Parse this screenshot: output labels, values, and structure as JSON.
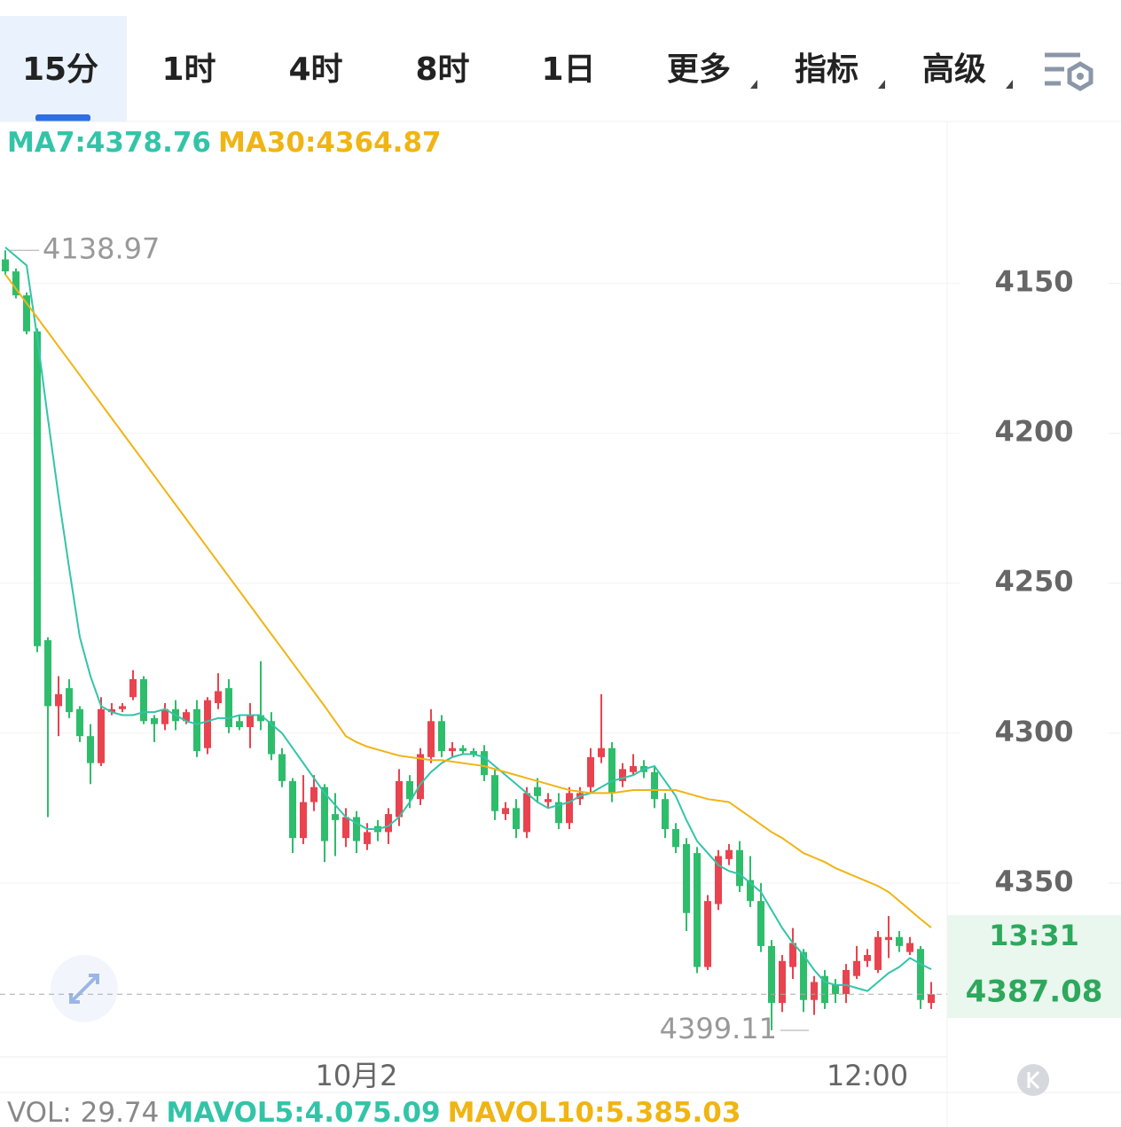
{
  "tabs": [
    "15分",
    "1时",
    "4时",
    "8时",
    "1日",
    "更多",
    "指标",
    "高级"
  ],
  "active_tab": 0,
  "chart_data": {
    "type": "candlestick",
    "legend": [
      "MA7:4378.76",
      "MA30:4364.87"
    ],
    "categories": [
      null,
      null,
      null,
      null,
      null,
      null,
      null,
      null,
      null,
      null,
      null,
      null,
      null,
      null,
      null,
      null,
      null,
      null,
      null,
      null,
      null,
      null,
      null,
      null,
      null,
      null,
      null,
      null,
      null,
      null,
      null,
      null,
      null,
      "10月2",
      null,
      null,
      null,
      null,
      null,
      null,
      null,
      null,
      null,
      null,
      null,
      null,
      null,
      null,
      null,
      null,
      null,
      null,
      null,
      null,
      null,
      null,
      null,
      null,
      null,
      null,
      null,
      null,
      null,
      null,
      null,
      null,
      null,
      null,
      null,
      null,
      null,
      null,
      null,
      null,
      null,
      null,
      null,
      null,
      null,
      null,
      null,
      "12:00",
      null,
      null,
      null,
      null,
      null,
      null
    ],
    "ohlc": [
      [
        4142,
        4147,
        4138.97,
        4146
      ],
      [
        4146,
        4155,
        4145,
        4154
      ],
      [
        4154,
        4167,
        4153,
        4166
      ],
      [
        4166,
        4273,
        4165,
        4271
      ],
      [
        4269,
        4328,
        4268,
        4291
      ],
      [
        4291,
        4301,
        4281,
        4287
      ],
      [
        4285,
        4295,
        4282,
        4293
      ],
      [
        4292,
        4303,
        4291,
        4301
      ],
      [
        4301,
        4317,
        4297,
        4310
      ],
      [
        4310,
        4311,
        4288,
        4292
      ],
      [
        4293,
        4294,
        4290,
        4292
      ],
      [
        4292,
        4293,
        4290,
        4291
      ],
      [
        4288,
        4289,
        4279,
        4282
      ],
      [
        4282,
        4297,
        4281,
        4296
      ],
      [
        4295,
        4303,
        4294,
        4297
      ],
      [
        4297,
        4299,
        4290,
        4292
      ],
      [
        4292,
        4299,
        4289,
        4296
      ],
      [
        4296,
        4297,
        4292,
        4293
      ],
      [
        4292,
        4308,
        4289,
        4306
      ],
      [
        4305,
        4307,
        4288,
        4289
      ],
      [
        4290,
        4292,
        4280,
        4286
      ],
      [
        4285,
        4300,
        4282,
        4298
      ],
      [
        4296,
        4299,
        4294,
        4298
      ],
      [
        4298,
        4305,
        4290,
        4294
      ],
      [
        4294,
        4299,
        4276,
        4296
      ],
      [
        4296,
        4309,
        4293,
        4307
      ],
      [
        4307,
        4318,
        4305,
        4316
      ],
      [
        4316,
        4340,
        4315,
        4335
      ],
      [
        4335,
        4337,
        4314,
        4323
      ],
      [
        4323,
        4326,
        4314,
        4318
      ],
      [
        4318,
        4343,
        4317,
        4336
      ],
      [
        4327,
        4341,
        4320,
        4329
      ],
      [
        4335,
        4338,
        4325,
        4328
      ],
      [
        4328,
        4340,
        4326,
        4336
      ],
      [
        4337,
        4339,
        4330,
        4333
      ],
      [
        4331,
        4336,
        4329,
        4333
      ],
      [
        4333,
        4337,
        4325,
        4327
      ],
      [
        4328,
        4331,
        4312,
        4316
      ],
      [
        4316,
        4325,
        4314,
        4322
      ],
      [
        4322,
        4324,
        4305,
        4307
      ],
      [
        4308,
        4310,
        4292,
        4296
      ],
      [
        4296,
        4308,
        4294,
        4306
      ],
      [
        4306,
        4308,
        4303,
        4305
      ],
      [
        4305,
        4307,
        4304,
        4306
      ],
      [
        4306,
        4308,
        4305,
        4307
      ],
      [
        4306,
        4316,
        4304,
        4314
      ],
      [
        4314,
        4329,
        4312,
        4326
      ],
      [
        4327,
        4329,
        4323,
        4325
      ],
      [
        4325,
        4335,
        4322,
        4332
      ],
      [
        4333,
        4335,
        4318,
        4320
      ],
      [
        4318,
        4323,
        4315,
        4321
      ],
      [
        4323,
        4325,
        4320,
        4322
      ],
      [
        4323,
        4332,
        4320,
        4330
      ],
      [
        4330,
        4332,
        4318,
        4320
      ],
      [
        4322,
        4324,
        4318,
        4320
      ],
      [
        4318,
        4320,
        4305,
        4308
      ],
      [
        4308,
        4310,
        4287,
        4305
      ],
      [
        4305,
        4323,
        4303,
        4320
      ],
      [
        4316,
        4318,
        4310,
        4312
      ],
      [
        4313,
        4314,
        4307,
        4311
      ],
      [
        4311,
        4315,
        4309,
        4313
      ],
      [
        4313,
        4325,
        4311,
        4322
      ],
      [
        4322,
        4335,
        4320,
        4332
      ],
      [
        4332,
        4340,
        4330,
        4338
      ],
      [
        4337,
        4366,
        4335,
        4360
      ],
      [
        4340,
        4380,
        4338,
        4378
      ],
      [
        4378,
        4379,
        4354,
        4356
      ],
      [
        4357,
        4359,
        4339,
        4341
      ],
      [
        4342,
        4344,
        4337,
        4339
      ],
      [
        4339,
        4353,
        4336,
        4351
      ],
      [
        4349,
        4358,
        4341,
        4356
      ],
      [
        4356,
        4373,
        4350,
        4371
      ],
      [
        4371,
        4399.11,
        4369,
        4390
      ],
      [
        4390,
        4393,
        4374,
        4376
      ],
      [
        4378,
        4382,
        4365,
        4370
      ],
      [
        4373,
        4393,
        4372,
        4389
      ],
      [
        4389,
        4394,
        4381,
        4383
      ],
      [
        4381,
        4392,
        4379,
        4390
      ],
      [
        4384,
        4390,
        4382,
        4387
      ],
      [
        4387,
        4390,
        4377,
        4379
      ],
      [
        4381,
        4382,
        4371,
        4376
      ],
      [
        4376,
        4378,
        4372,
        4374
      ],
      [
        4379,
        4380,
        4366,
        4368
      ],
      [
        4369,
        4375,
        4361,
        4368
      ],
      [
        4368,
        4373,
        4366,
        4371
      ],
      [
        4373,
        4374,
        4368,
        4370
      ],
      [
        4372,
        4392,
        4371,
        4389
      ],
      [
        4390,
        4392,
        4383,
        4387.08
      ]
    ],
    "up_color": "#2ebd6b",
    "down_color": "#e9434f",
    "series": [
      {
        "name": "MA7",
        "color": "#33c4a8",
        "values": [
          4138,
          4141,
          4144,
          4168,
          4195,
          4221,
          4245,
          4268,
          4281,
          4291,
          4293,
          4294,
          4294,
          4293,
          4293,
          4292,
          4294,
          4296,
          4297,
          4296,
          4295,
          4295,
          4294,
          4294,
          4294,
          4297,
          4300,
          4305,
          4310,
          4315,
          4320,
          4324,
          4328,
          4330,
          4332,
          4332,
          4331,
          4328,
          4323,
          4317,
          4313,
          4310,
          4308,
          4307,
          4307,
          4308,
          4311,
          4314,
          4317,
          4320,
          4323,
          4325,
          4324,
          4323,
          4321,
          4320,
          4318,
          4316,
          4315,
          4314,
          4312,
          4311,
          4316,
          4321,
          4329,
          4336,
          4340,
          4344,
          4346,
          4347,
          4350,
          4353,
          4359,
          4365,
          4370,
          4374,
          4379,
          4383,
          4384,
          4384,
          4385,
          4386,
          4383,
          4380,
          4378,
          4375,
          4377,
          4378.76
        ]
      },
      {
        "name": "MA30",
        "color": "#f0b414",
        "values": [
          4147,
          4151.8,
          4156.6,
          4161.4,
          4166.2,
          4171,
          4175.8,
          4180.6,
          4185.4,
          4190.2,
          4195,
          4199.8,
          4204.6,
          4209.4,
          4214.2,
          4219,
          4223.8,
          4228.6,
          4233.4,
          4238.2,
          4243,
          4247.8,
          4252.6,
          4257.4,
          4262.2,
          4267,
          4271.8,
          4276.6,
          4281.4,
          4286.2,
          4291,
          4296,
          4301,
          4303,
          4304.5,
          4305.5,
          4306.5,
          4307.5,
          4308,
          4308.5,
          4309,
          4309,
          4309.5,
          4310,
          4310.5,
          4311,
          4312,
          4313,
          4314,
          4315,
          4316,
          4317,
          4318,
          4319,
          4319.5,
          4320,
          4320,
          4320,
          4319.5,
          4319,
          4319,
          4319,
          4319,
          4319,
          4320,
          4321,
          4322,
          4322.5,
          4323,
          4325.5,
          4328,
          4330.5,
          4333,
          4335,
          4337.5,
          4340,
          4341.5,
          4343,
          4345,
          4346.5,
          4348,
          4349.5,
          4351,
          4353,
          4356,
          4359,
          4362,
          4364.87
        ]
      }
    ],
    "ylim": [
      4096,
      4408
    ],
    "invert_y": true,
    "yticks": [
      4150,
      4200,
      4250,
      4300,
      4350
    ],
    "grid": true,
    "max_marker": 4138.97,
    "min_marker": 4399.11,
    "last_price": 4387.08,
    "countdown": "13:31"
  },
  "volume_legend": [
    "VOL: 29.74",
    "MAVOL5:4.075.09",
    "MAVOL10:5.385.03"
  ]
}
